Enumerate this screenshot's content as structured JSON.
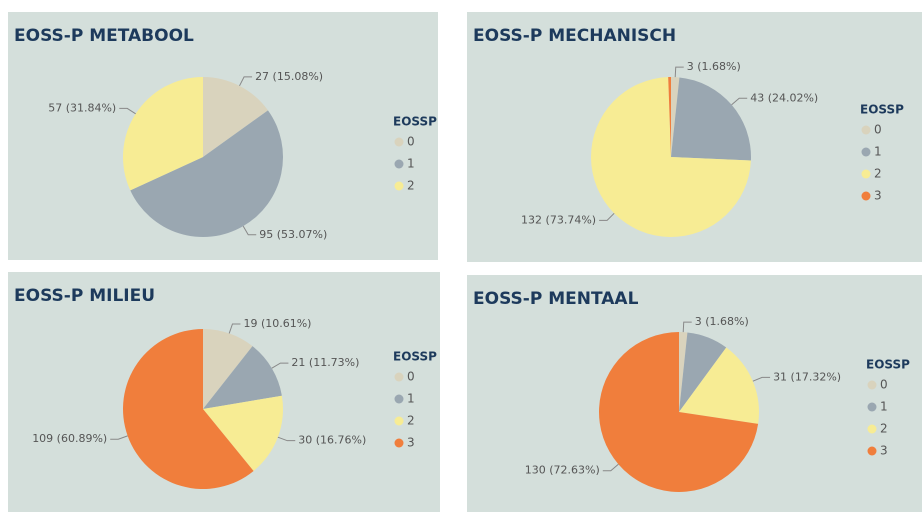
{
  "chart_data": [
    {
      "type": "pie",
      "title": "EOSS-P METABOOL",
      "legend_title": "EOSSP",
      "categories": [
        "0",
        "1",
        "2"
      ],
      "values": [
        27,
        95,
        57
      ],
      "value_labels": [
        "27 (15.08%)",
        "95 (53.07%)",
        "57 (31.84%)"
      ],
      "colors": [
        "#d9d3bd",
        "#9aa7b1",
        "#f7ec94"
      ]
    },
    {
      "type": "pie",
      "title": "EOSS-P MECHANISCH",
      "legend_title": "EOSSP",
      "categories": [
        "0",
        "1",
        "2",
        "3"
      ],
      "values": [
        3,
        43,
        132,
        1
      ],
      "value_labels": [
        "3 (1.68%)",
        "43 (24.02%)",
        "132 (73.74%)",
        null
      ],
      "colors": [
        "#d9d3bd",
        "#9aa7b1",
        "#f7ec94",
        "#f07e3c"
      ]
    },
    {
      "type": "pie",
      "title": "EOSS-P MILIEU",
      "legend_title": "EOSSP",
      "categories": [
        "0",
        "1",
        "2",
        "3"
      ],
      "values": [
        19,
        21,
        30,
        109
      ],
      "value_labels": [
        "19 (10.61%)",
        "21 (11.73%)",
        "30 (16.76%)",
        "109 (60.89%)"
      ],
      "colors": [
        "#d9d3bd",
        "#9aa7b1",
        "#f7ec94",
        "#f07e3c"
      ]
    },
    {
      "type": "pie",
      "title": "EOSS-P MENTAAL",
      "legend_title": "EOSSP",
      "categories": [
        "0",
        "1",
        "2",
        "3"
      ],
      "values": [
        3,
        15,
        31,
        130
      ],
      "value_labels": [
        "3 (1.68%)",
        null,
        "31 (17.32%)",
        "130 (72.63%)"
      ],
      "colors": [
        "#d9d3bd",
        "#9aa7b1",
        "#f7ec94",
        "#f07e3c"
      ]
    }
  ]
}
